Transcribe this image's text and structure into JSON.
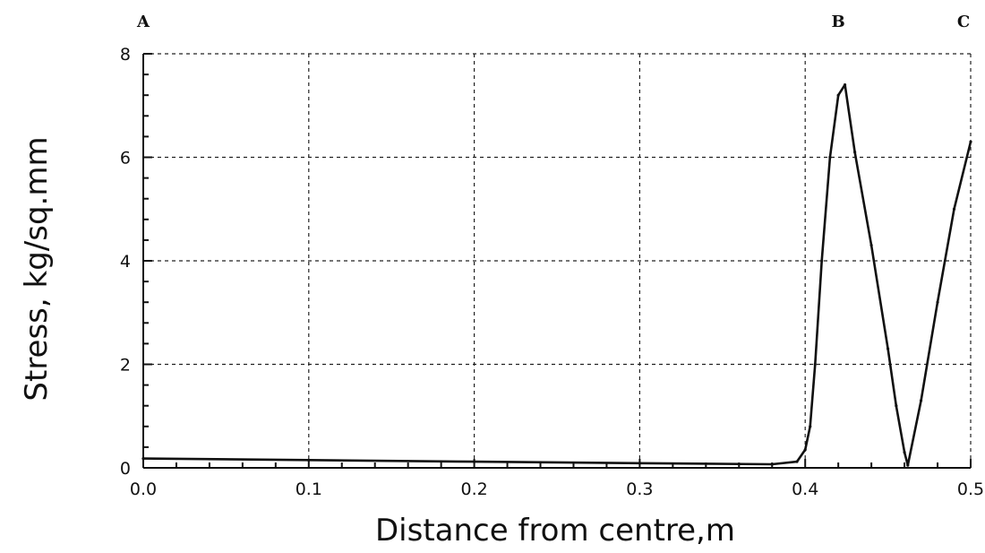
{
  "chart_data": {
    "type": "line",
    "title": "",
    "xlabel": "Distance from centre,m",
    "ylabel": "Stress,  kg/sq.mm",
    "xlim": [
      0.0,
      0.5
    ],
    "ylim": [
      0,
      8
    ],
    "x_ticks": [
      "0.0",
      "0.1",
      "0.2",
      "0.3",
      "0.4",
      "0.5"
    ],
    "x_tick_values": [
      0.0,
      0.1,
      0.2,
      0.3,
      0.4,
      0.5
    ],
    "y_ticks": [
      "0",
      "2",
      "4",
      "6",
      "8"
    ],
    "y_tick_values": [
      0,
      2,
      4,
      6,
      8
    ],
    "grid": true,
    "annotations": [
      {
        "text": "A",
        "x": 0.0
      },
      {
        "text": "B",
        "x": 0.42
      },
      {
        "text": "C",
        "x": 0.5
      }
    ],
    "series": [
      {
        "color": "#111111",
        "x": [
          0.0,
          0.1,
          0.2,
          0.3,
          0.38,
          0.395,
          0.4,
          0.403,
          0.406,
          0.41,
          0.415,
          0.42,
          0.424,
          0.43,
          0.44,
          0.45,
          0.455,
          0.46,
          0.462,
          0.47,
          0.48,
          0.49,
          0.5
        ],
        "y": [
          0.18,
          0.15,
          0.12,
          0.09,
          0.07,
          0.12,
          0.35,
          0.8,
          2.0,
          4.0,
          6.0,
          7.2,
          7.4,
          6.1,
          4.3,
          2.3,
          1.2,
          0.3,
          0.05,
          1.3,
          3.2,
          5.0,
          6.3
        ]
      }
    ]
  }
}
